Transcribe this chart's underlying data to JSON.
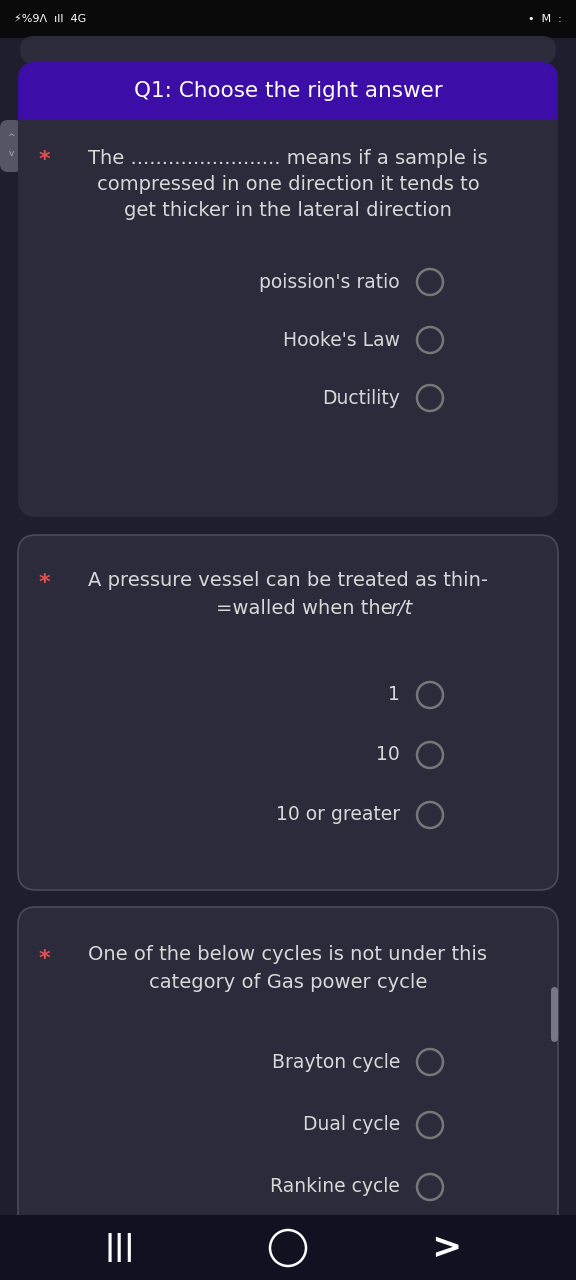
{
  "bg_color": "#1e1e2e",
  "card_color": "#2b2b3b",
  "card_border_color": "#4a4a5a",
  "header_color": "#3d0da8",
  "text_color": "#d8d8d8",
  "star_color": "#e05050",
  "circle_color": "#777777",
  "status_bar_color": "#0a0a0a",
  "nav_bar_color": "#111122",
  "title": "Q1: Choose the right answer",
  "questions": [
    {
      "question_lines": [
        "The ........................ means if a sample is",
        "compressed in one direction it tends to",
        "get thicker in the lateral direction"
      ],
      "options": [
        "poission's ratio",
        "Hooke's Law",
        "Ductility"
      ]
    },
    {
      "question_lines": [
        "A pressure vessel can be treated as thin-",
        "=walled when the r/t"
      ],
      "options": [
        "1",
        "10",
        "10 or greater"
      ]
    },
    {
      "question_lines": [
        "One of the below cycles is not under this",
        "category of Gas power cycle"
      ],
      "options": [
        "Brayton cycle",
        "Dual cycle",
        "Rankine cycle"
      ]
    }
  ],
  "figsize": [
    5.76,
    12.8
  ],
  "dpi": 100
}
